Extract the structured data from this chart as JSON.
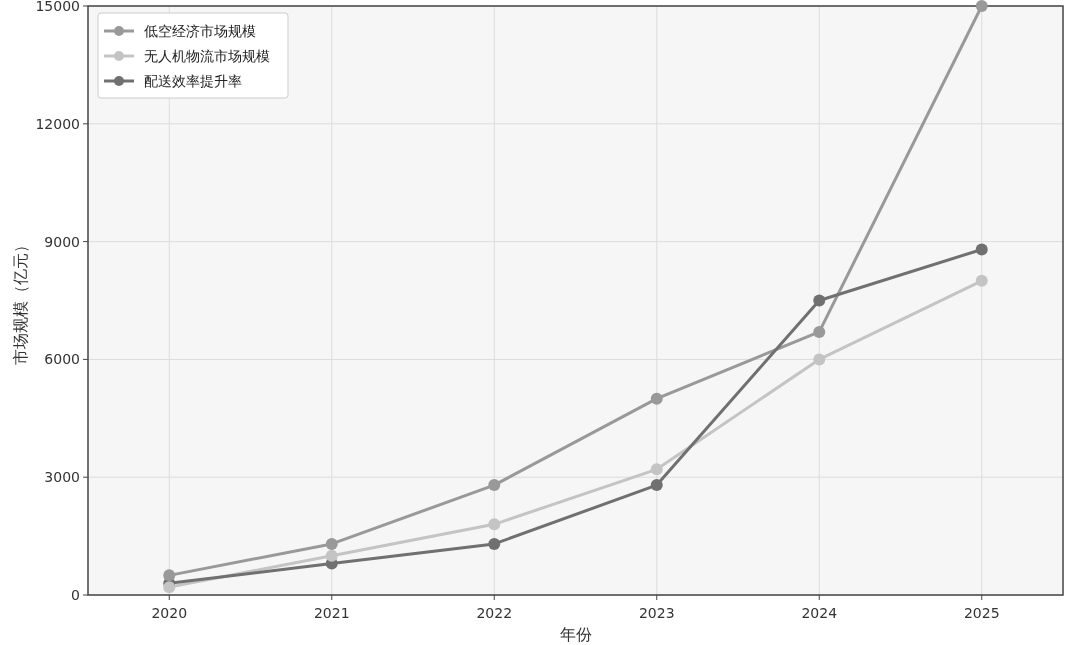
{
  "chart_data": {
    "type": "line",
    "xlabel": "年份",
    "ylabel": "市场规模（亿元）",
    "categories": [
      "2020",
      "2021",
      "2022",
      "2023",
      "2024",
      "2025"
    ],
    "series": [
      {
        "name": "低空经济市场规模",
        "color": "#999999",
        "values": [
          500,
          1300,
          2800,
          5000,
          6700,
          15000
        ]
      },
      {
        "name": "无人机物流市场规模",
        "color": "#c4c4c4",
        "values": [
          200,
          1000,
          1800,
          3200,
          6000,
          8000
        ]
      },
      {
        "name": "配送效率提升率",
        "color": "#707070",
        "values": [
          300,
          800,
          1300,
          2800,
          7500,
          8800
        ]
      }
    ],
    "ylim": [
      0,
      15000
    ],
    "yticks": [
      0,
      3000,
      6000,
      9000,
      12000,
      15000
    ],
    "grid": true,
    "legend": "top left",
    "marker": "circle",
    "line_style": "solid"
  }
}
